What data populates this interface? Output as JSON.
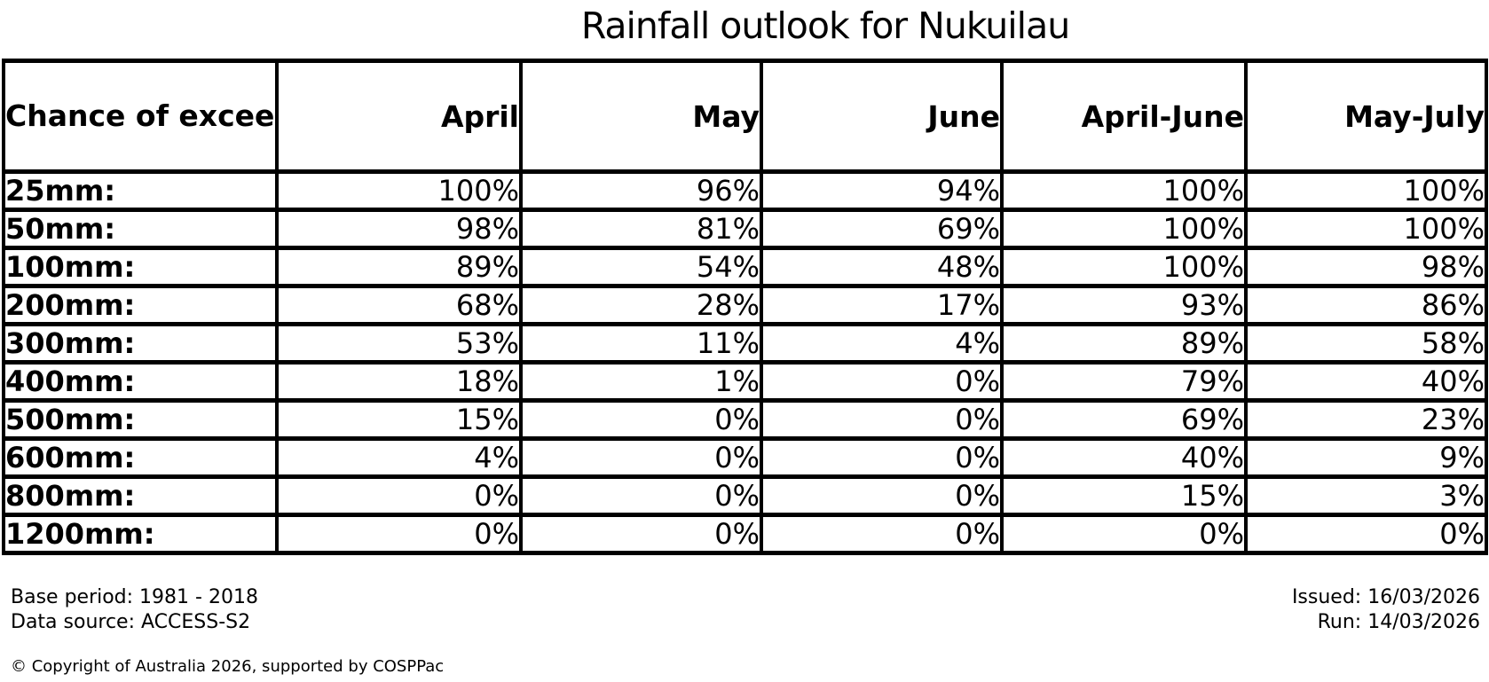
{
  "chart_data": {
    "type": "table",
    "title": "Rainfall outlook for Nukuilau",
    "corner_header": "Chance of\nexceeding\na threshold:",
    "columns": [
      "April",
      "May",
      "June",
      "April-June",
      "May-July"
    ],
    "unit": "%",
    "rows": [
      {
        "threshold": "25mm:",
        "values_pct": [
          100,
          96,
          94,
          100,
          100
        ]
      },
      {
        "threshold": "50mm:",
        "values_pct": [
          98,
          81,
          69,
          100,
          100
        ]
      },
      {
        "threshold": "100mm:",
        "values_pct": [
          89,
          54,
          48,
          100,
          98
        ]
      },
      {
        "threshold": "200mm:",
        "values_pct": [
          68,
          28,
          17,
          93,
          86
        ]
      },
      {
        "threshold": "300mm:",
        "values_pct": [
          53,
          11,
          4,
          89,
          58
        ]
      },
      {
        "threshold": "400mm:",
        "values_pct": [
          18,
          1,
          0,
          79,
          40
        ]
      },
      {
        "threshold": "500mm:",
        "values_pct": [
          15,
          0,
          0,
          69,
          23
        ]
      },
      {
        "threshold": "600mm:",
        "values_pct": [
          4,
          0,
          0,
          40,
          9
        ]
      },
      {
        "threshold": "800mm:",
        "values_pct": [
          0,
          0,
          0,
          15,
          3
        ]
      },
      {
        "threshold": "1200mm:",
        "values_pct": [
          0,
          0,
          0,
          0,
          0
        ]
      }
    ],
    "layout_hints": {
      "grid": "full black cell borders",
      "first_column_align": "left",
      "value_align": "right"
    }
  },
  "footer": {
    "base_period": "Base period: 1981 - 2018",
    "data_source": "Data source: ACCESS-S2",
    "issued": "Issued: 16/03/2026",
    "run": "Run: 14/03/2026",
    "copyright": "© Copyright of Australia 2026, supported by COSPPac"
  }
}
